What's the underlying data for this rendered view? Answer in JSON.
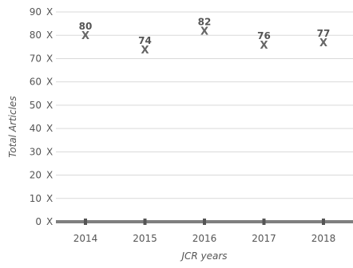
{
  "chart_data": {
    "type": "scatter",
    "title": "",
    "xlabel": "JCR years",
    "ylabel": "Total Articles",
    "categories": [
      "2014",
      "2015",
      "2016",
      "2017",
      "2018"
    ],
    "series": [
      {
        "values": [
          80,
          74,
          82,
          76,
          77
        ]
      }
    ],
    "data_labels": [
      "80",
      "74",
      "82",
      "76",
      "77"
    ],
    "ylim": [
      0,
      90
    ],
    "y_ticks": [
      {
        "label": "0",
        "value": 0
      },
      {
        "label": "10",
        "value": 10
      },
      {
        "label": "20",
        "value": 20
      },
      {
        "label": "30",
        "value": 30
      },
      {
        "label": "40",
        "value": 40
      },
      {
        "label": "50",
        "value": 50
      },
      {
        "label": "60",
        "value": 60
      },
      {
        "label": "70",
        "value": 70
      },
      {
        "label": "80",
        "value": 80
      },
      {
        "label": "90",
        "value": 90
      }
    ],
    "y_tick_suffix": "X",
    "point_marker": "X",
    "grid": true,
    "legend": "none"
  }
}
